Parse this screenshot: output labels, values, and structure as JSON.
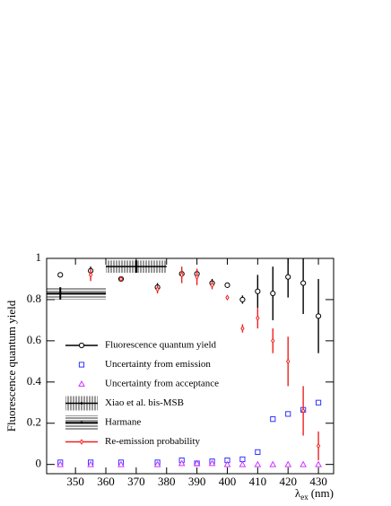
{
  "chart_data": {
    "type": "scatter",
    "y_label": "Fluorescence quantum yield",
    "x_label": {
      "symbol": "λ",
      "subscript": "ex",
      "unit": "(nm)"
    },
    "xlim": [
      340.5,
      435
    ],
    "ylim": [
      -0.045,
      1.0
    ],
    "xticks": [
      350,
      360,
      370,
      380,
      390,
      400,
      410,
      420,
      430
    ],
    "yticks": [
      0,
      0.2,
      0.4,
      0.6,
      0.8,
      1
    ],
    "series": [
      {
        "name": "Fluorescence quantum yield",
        "marker": "circle",
        "color": "#000000",
        "x": [
          345,
          355,
          365,
          377,
          385,
          390,
          395,
          400,
          405,
          410,
          415,
          420,
          425,
          430
        ],
        "values": [
          0.92,
          0.94,
          0.9,
          0.86,
          0.925,
          0.925,
          0.88,
          0.87,
          0.8,
          0.84,
          0.83,
          0.91,
          0.88,
          0.72
        ],
        "errors": [
          0.01,
          0.02,
          0.01,
          0.02,
          0.02,
          0.02,
          0.02,
          0.01,
          0.02,
          0.08,
          0.13,
          0.1,
          0.15,
          0.18
        ]
      },
      {
        "name": "Uncertainty from emission",
        "marker": "square",
        "color": "#3333ff",
        "x": [
          345,
          355,
          365,
          377,
          385,
          390,
          395,
          400,
          405,
          410,
          415,
          420,
          425,
          430
        ],
        "values": [
          0.01,
          0.01,
          0.01,
          0.01,
          0.02,
          0.005,
          0.015,
          0.02,
          0.025,
          0.06,
          0.22,
          0.245,
          0.265,
          0.3
        ]
      },
      {
        "name": "Uncertainty from acceptance",
        "marker": "triangle",
        "color": "#cc33ff",
        "x": [
          345,
          355,
          365,
          377,
          385,
          390,
          395,
          400,
          405,
          410,
          415,
          420,
          425,
          430
        ],
        "values": [
          0.0,
          0.0,
          0.0,
          0.0,
          0.005,
          0.005,
          0.005,
          0.0,
          0.0,
          0.0,
          0.0,
          0.0,
          0.0,
          0.0
        ]
      },
      {
        "name": "Xiao et al. bis-MSB",
        "marker": "vhatch",
        "color": "#000000",
        "x": [
          370
        ],
        "values": [
          0.96
        ],
        "errors": [
          0.03
        ],
        "x_errors": [
          10
        ]
      },
      {
        "name": "Harmane",
        "marker": "hhatch",
        "color": "#000000",
        "x": [
          345
        ],
        "values": [
          0.83
        ],
        "errors": [
          0.03
        ],
        "x_errors": [
          15
        ]
      },
      {
        "name": "Re-emission probability",
        "marker": "diamond",
        "color": "#ee2222",
        "x": [
          355,
          365,
          377,
          385,
          390,
          395,
          400,
          405,
          410,
          415,
          420,
          425,
          430
        ],
        "values": [
          0.92,
          0.9,
          0.85,
          0.92,
          0.91,
          0.87,
          0.81,
          0.66,
          0.71,
          0.6,
          0.5,
          0.26,
          0.09
        ],
        "errors": [
          0.03,
          0.01,
          0.02,
          0.04,
          0.04,
          0.02,
          0.01,
          0.02,
          0.05,
          0.06,
          0.12,
          0.12,
          0.07
        ]
      }
    ]
  }
}
